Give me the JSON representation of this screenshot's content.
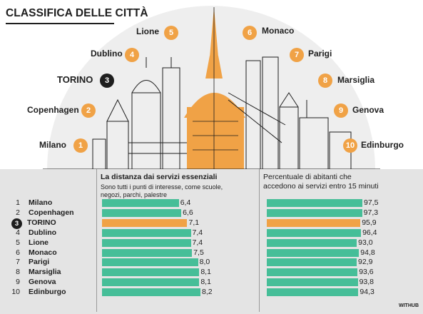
{
  "title": "CLASSIFICA DELLE CITTÀ",
  "cities_ring": [
    {
      "rank": "1",
      "name": "Milano"
    },
    {
      "rank": "2",
      "name": "Copenhagen"
    },
    {
      "rank": "3",
      "name": "TORINO"
    },
    {
      "rank": "4",
      "name": "Dublino"
    },
    {
      "rank": "5",
      "name": "Lione"
    },
    {
      "rank": "6",
      "name": "Monaco"
    },
    {
      "rank": "7",
      "name": "Parigi"
    },
    {
      "rank": "8",
      "name": "Marsiglia"
    },
    {
      "rank": "9",
      "name": "Genova"
    },
    {
      "rank": "10",
      "name": "Edinburgo"
    }
  ],
  "colors": {
    "orange": "#f0a246",
    "green": "#46be98",
    "dark": "#1e1e1e",
    "panel": "#e4e4e4"
  },
  "chart_data": [
    {
      "type": "bar",
      "title": "La distanza dai servizi essenziali",
      "subtitle": "Sono tutti i punti di interesse, come scuole, negozi, parchi, palestre",
      "categories": [
        "Milano",
        "Copenhagen",
        "TORINO",
        "Dublino",
        "Lione",
        "Monaco",
        "Parigi",
        "Marsiglia",
        "Genova",
        "Edinburgo"
      ],
      "values": [
        6.4,
        6.6,
        7.1,
        7.4,
        7.4,
        7.5,
        8.0,
        8.1,
        8.1,
        8.2
      ],
      "labels": [
        "6,4",
        "6,6",
        "7,1",
        "7,4",
        "7,4",
        "7,5",
        "8,0",
        "8,1",
        "8,1",
        "8,2"
      ],
      "highlight": "TORINO"
    },
    {
      "type": "bar",
      "title": "Percentuale di abitanti che accedono ai servizi entro 15 minuti",
      "categories": [
        "Milano",
        "Copenhagen",
        "TORINO",
        "Dublino",
        "Lione",
        "Monaco",
        "Parigi",
        "Marsiglia",
        "Genova",
        "Edinburgo"
      ],
      "values": [
        97.5,
        97.3,
        95.9,
        96.4,
        93.0,
        94.8,
        92.9,
        93.6,
        93.8,
        94.3
      ],
      "labels": [
        "97,5",
        "97,3",
        "95,9",
        "96,4",
        "93,0",
        "94,8",
        "92,9",
        "93,6",
        "93,8",
        "94,3"
      ],
      "highlight": "TORINO"
    }
  ],
  "table": {
    "ranks": [
      "1",
      "2",
      "3",
      "4",
      "5",
      "6",
      "7",
      "8",
      "9",
      "10"
    ],
    "cities": [
      "Milano",
      "Copenhagen",
      "TORINO",
      "Dublino",
      "Lione",
      "Monaco",
      "Parigi",
      "Marsiglia",
      "Genova",
      "Edinburgo"
    ],
    "col1_title": "La distanza dai servizi essenziali",
    "col1_sub_1": "Sono tutti i punti di interesse, come scuole,",
    "col1_sub_2": "negozi, parchi, palestre",
    "col2_title_1": "Percentuale di abitanti che",
    "col2_title_2": "accedono ai servizi entro 15 minuti"
  },
  "credit": "WITHUB"
}
